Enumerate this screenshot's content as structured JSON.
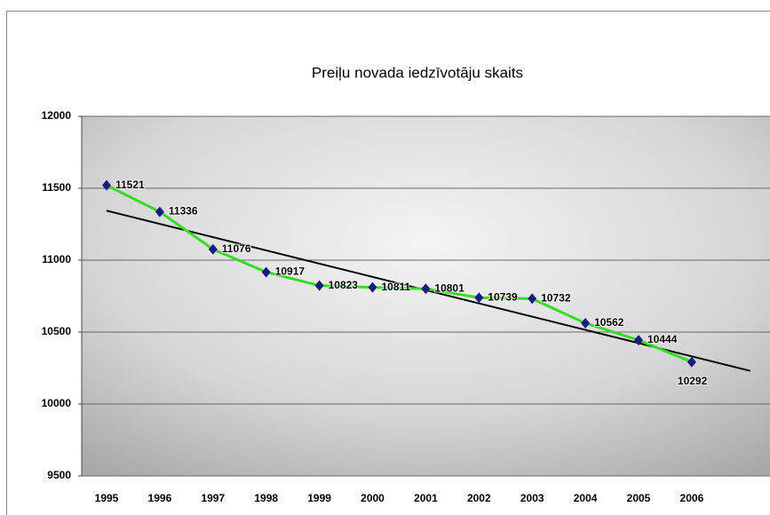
{
  "chart_data": {
    "type": "line",
    "title": "Preiļu novada iedzīvotāju skaits",
    "categories": [
      "1995",
      "1996",
      "1997",
      "1998",
      "1999",
      "2000",
      "2001",
      "2002",
      "2003",
      "2004",
      "2005",
      "2006"
    ],
    "values": [
      11521,
      11336,
      11076,
      10917,
      10823,
      10811,
      10801,
      10739,
      10732,
      10562,
      10444,
      10292
    ],
    "color": "#33dd22",
    "marker_color": "#1a1a80",
    "ylim": [
      9500,
      12000
    ],
    "yticks": [
      9500,
      10000,
      10500,
      11000,
      11500,
      12000
    ],
    "grid": true,
    "trendline": true,
    "trendline_color": "#000000"
  }
}
